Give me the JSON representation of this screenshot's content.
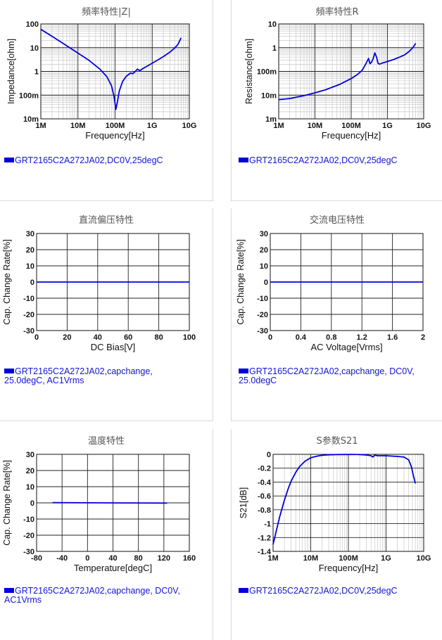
{
  "chart_data": [
    {
      "id": "impedance",
      "type": "line",
      "title": "頻率特性|Z|",
      "xlabel": "Frequency[Hz]",
      "ylabel": "Impedance[ohm]",
      "xscale": "log",
      "yscale": "log",
      "xlim": [
        1000000,
        10000000000
      ],
      "ylim": [
        0.01,
        100
      ],
      "xticks": [
        {
          "v": 1000000,
          "label": "1M"
        },
        {
          "v": 10000000,
          "label": "10M"
        },
        {
          "v": 100000000,
          "label": "100M"
        },
        {
          "v": 1000000000,
          "label": "1G"
        },
        {
          "v": 10000000000,
          "label": "10G"
        }
      ],
      "yticks": [
        {
          "v": 0.01,
          "label": "10m"
        },
        {
          "v": 0.1,
          "label": "100m"
        },
        {
          "v": 1,
          "label": "1"
        },
        {
          "v": 10,
          "label": "10"
        },
        {
          "v": 100,
          "label": "100"
        }
      ],
      "grid": true,
      "legend": "GRT2165C2A272JA02,DC0V,25degC",
      "series": [
        {
          "color": "#0000dd",
          "x": [
            1000000,
            2000000,
            5000000,
            10000000,
            20000000,
            40000000,
            60000000,
            80000000,
            95000000,
            105000000,
            115000000,
            130000000,
            160000000,
            200000000,
            260000000,
            300000000,
            350000000,
            400000000,
            450000000,
            500000000,
            550000000,
            700000000,
            1000000000,
            1500000000,
            2000000000,
            3000000000,
            4000000000,
            5000000000,
            6000000000
          ],
          "y": [
            59,
            30,
            12,
            5.9,
            2.9,
            1.2,
            0.6,
            0.25,
            0.08,
            0.025,
            0.05,
            0.15,
            0.38,
            0.62,
            0.85,
            0.8,
            1.0,
            1.25,
            1.1,
            1.15,
            1.3,
            1.6,
            2.2,
            3.2,
            4.2,
            6.5,
            9.5,
            14,
            26
          ]
        }
      ]
    },
    {
      "id": "resistance",
      "type": "line",
      "title": "頻率特性R",
      "xlabel": "Frequency[Hz]",
      "ylabel": "Resistance[ohm]",
      "xscale": "log",
      "yscale": "log",
      "xlim": [
        1000000,
        10000000000
      ],
      "ylim": [
        0.001,
        10
      ],
      "xticks": [
        {
          "v": 1000000,
          "label": "1M"
        },
        {
          "v": 10000000,
          "label": "10M"
        },
        {
          "v": 100000000,
          "label": "100M"
        },
        {
          "v": 1000000000,
          "label": "1G"
        },
        {
          "v": 10000000000,
          "label": "10G"
        }
      ],
      "yticks": [
        {
          "v": 0.001,
          "label": "1m"
        },
        {
          "v": 0.01,
          "label": "10m"
        },
        {
          "v": 0.1,
          "label": "100m"
        },
        {
          "v": 1,
          "label": "1"
        },
        {
          "v": 10,
          "label": "10"
        }
      ],
      "grid": true,
      "legend": "GRT2165C2A272JA02,DC0V,25degC",
      "series": [
        {
          "color": "#0000dd",
          "x": [
            1000000,
            2000000,
            5000000,
            10000000,
            20000000,
            50000000,
            100000000,
            150000000,
            200000000,
            250000000,
            300000000,
            330000000,
            360000000,
            400000000,
            450000000,
            500000000,
            550000000,
            600000000,
            700000000,
            1000000000,
            1500000000,
            2000000000,
            3000000000,
            4000000000,
            5000000000,
            6000000000
          ],
          "y": [
            0.0065,
            0.0072,
            0.0095,
            0.0125,
            0.017,
            0.029,
            0.05,
            0.075,
            0.11,
            0.2,
            0.35,
            0.21,
            0.24,
            0.33,
            0.6,
            0.4,
            0.22,
            0.2,
            0.22,
            0.26,
            0.32,
            0.38,
            0.5,
            0.7,
            1.0,
            1.5
          ]
        }
      ]
    },
    {
      "id": "dc-bias",
      "type": "line",
      "title": "直流偏压特性",
      "xlabel": "DC Bias[V]",
      "ylabel": "Cap. Change Rate[%]",
      "xlim": [
        0,
        100
      ],
      "ylim": [
        -30,
        30
      ],
      "xticks": [
        {
          "v": 0,
          "label": "0"
        },
        {
          "v": 20,
          "label": "20"
        },
        {
          "v": 40,
          "label": "40"
        },
        {
          "v": 60,
          "label": "60"
        },
        {
          "v": 80,
          "label": "80"
        },
        {
          "v": 100,
          "label": "100"
        }
      ],
      "yticks": [
        {
          "v": 30,
          "label": "30"
        },
        {
          "v": 20,
          "label": "20"
        },
        {
          "v": 10,
          "label": "10"
        },
        {
          "v": 0,
          "label": "0"
        },
        {
          "v": -10,
          "label": "-10"
        },
        {
          "v": -20,
          "label": "-20"
        },
        {
          "v": -30,
          "label": "-30"
        }
      ],
      "grid": true,
      "legend": "GRT2165C2A272JA02,capchange, 25.0degC, AC1Vrms",
      "series": [
        {
          "color": "#0000dd",
          "x": [
            0,
            100
          ],
          "y": [
            0,
            0
          ]
        }
      ]
    },
    {
      "id": "ac-voltage",
      "type": "line",
      "title": "交流电压特性",
      "xlabel": "AC Voltage[Vrms]",
      "ylabel": "Cap. Change Rate[%]",
      "xlim": [
        0,
        2
      ],
      "ylim": [
        -30,
        30
      ],
      "xticks": [
        {
          "v": 0,
          "label": "0"
        },
        {
          "v": 0.4,
          "label": "0.4"
        },
        {
          "v": 0.8,
          "label": "0.8"
        },
        {
          "v": 1.2,
          "label": "1.2"
        },
        {
          "v": 1.6,
          "label": "1.6"
        },
        {
          "v": 2,
          "label": "2"
        }
      ],
      "yticks": [
        {
          "v": 30,
          "label": "30"
        },
        {
          "v": 20,
          "label": "20"
        },
        {
          "v": 10,
          "label": "10"
        },
        {
          "v": 0,
          "label": "0"
        },
        {
          "v": -10,
          "label": "-10"
        },
        {
          "v": -20,
          "label": "-20"
        },
        {
          "v": -30,
          "label": "-30"
        }
      ],
      "grid": true,
      "legend": "GRT2165C2A272JA02,capchange, DC0V, 25.0degC",
      "series": [
        {
          "color": "#0000dd",
          "x": [
            0,
            2
          ],
          "y": [
            0,
            0
          ]
        }
      ]
    },
    {
      "id": "temperature",
      "type": "line",
      "title": "温度特性",
      "xlabel": "Temperature[degC]",
      "ylabel": "Cap. Change Rate[%]",
      "xlim": [
        -80,
        160
      ],
      "ylim": [
        -30,
        30
      ],
      "xticks": [
        {
          "v": -80,
          "label": "-80"
        },
        {
          "v": -40,
          "label": "-40"
        },
        {
          "v": 0,
          "label": "0"
        },
        {
          "v": 40,
          "label": "40"
        },
        {
          "v": 80,
          "label": "80"
        },
        {
          "v": 120,
          "label": "120"
        },
        {
          "v": 160,
          "label": "160"
        }
      ],
      "yticks": [
        {
          "v": 30,
          "label": "30"
        },
        {
          "v": 20,
          "label": "20"
        },
        {
          "v": 10,
          "label": "10"
        },
        {
          "v": 0,
          "label": "0"
        },
        {
          "v": -10,
          "label": "-10"
        },
        {
          "v": -20,
          "label": "-20"
        },
        {
          "v": -30,
          "label": "-30"
        }
      ],
      "grid": true,
      "legend": "GRT2165C2A272JA02,capchange, DC0V, AC1Vrms",
      "series": [
        {
          "color": "#0000dd",
          "x": [
            -55,
            0,
            25,
            60,
            125
          ],
          "y": [
            0.15,
            0.05,
            0,
            -0.05,
            -0.15
          ]
        }
      ]
    },
    {
      "id": "s21",
      "type": "line",
      "title": "S参数S21",
      "xlabel": "Frequency[Hz]",
      "ylabel": "S21[dB]",
      "xscale": "log",
      "xlim": [
        1000000,
        10000000000
      ],
      "ylim": [
        -1.4,
        0
      ],
      "xticks": [
        {
          "v": 1000000,
          "label": "1M"
        },
        {
          "v": 10000000,
          "label": "10M"
        },
        {
          "v": 100000000,
          "label": "100M"
        },
        {
          "v": 1000000000,
          "label": "1G"
        },
        {
          "v": 10000000000,
          "label": "10G"
        }
      ],
      "yticks": [
        {
          "v": 0,
          "label": "0"
        },
        {
          "v": -0.2,
          "label": "-0.2"
        },
        {
          "v": -0.4,
          "label": "-0.4"
        },
        {
          "v": -0.6,
          "label": "-0.6"
        },
        {
          "v": -0.8,
          "label": "-0.8"
        },
        {
          "v": -1,
          "label": "-1"
        },
        {
          "v": -1.2,
          "label": "-1.2"
        },
        {
          "v": -1.4,
          "label": "-1.4"
        }
      ],
      "grid": true,
      "legend": "GRT2165C2A272JA02,DC0V,25degC",
      "series": [
        {
          "color": "#0000dd",
          "x": [
            1000000,
            1200000,
            1500000,
            2000000,
            2500000,
            3000000,
            4000000,
            5000000,
            7000000,
            10000000,
            15000000,
            20000000,
            30000000,
            50000000,
            100000000,
            200000000,
            300000000,
            400000000,
            450000000,
            500000000,
            600000000,
            1000000000,
            2000000000,
            3000000000,
            4000000000,
            4700000000,
            5300000000,
            6000000000
          ],
          "y": [
            -1.3,
            -1.12,
            -0.9,
            -0.66,
            -0.5,
            -0.39,
            -0.26,
            -0.18,
            -0.1,
            -0.05,
            -0.025,
            -0.014,
            -0.007,
            -0.003,
            -0.002,
            -0.003,
            -0.01,
            -0.02,
            -0.04,
            -0.01,
            -0.02,
            -0.02,
            -0.03,
            -0.04,
            -0.08,
            -0.18,
            -0.3,
            -0.42
          ]
        }
      ]
    }
  ]
}
